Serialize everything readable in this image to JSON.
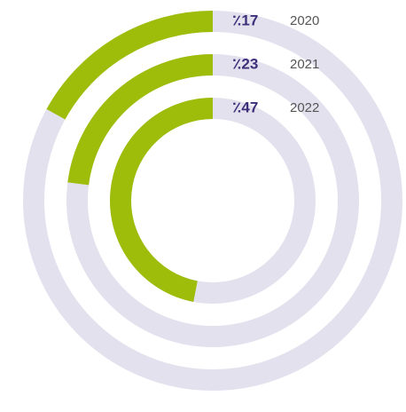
{
  "chart_data": {
    "type": "radial_bar",
    "categories": [
      "2020",
      "2021",
      "2022"
    ],
    "values": [
      17,
      23,
      47
    ],
    "value_labels": [
      "٪17",
      "٪23",
      "٪47"
    ],
    "color": "#9ebd0a",
    "track_color": "#e4e1ee",
    "label_color": "#3d2f7a",
    "ylim": [
      0,
      100
    ]
  }
}
